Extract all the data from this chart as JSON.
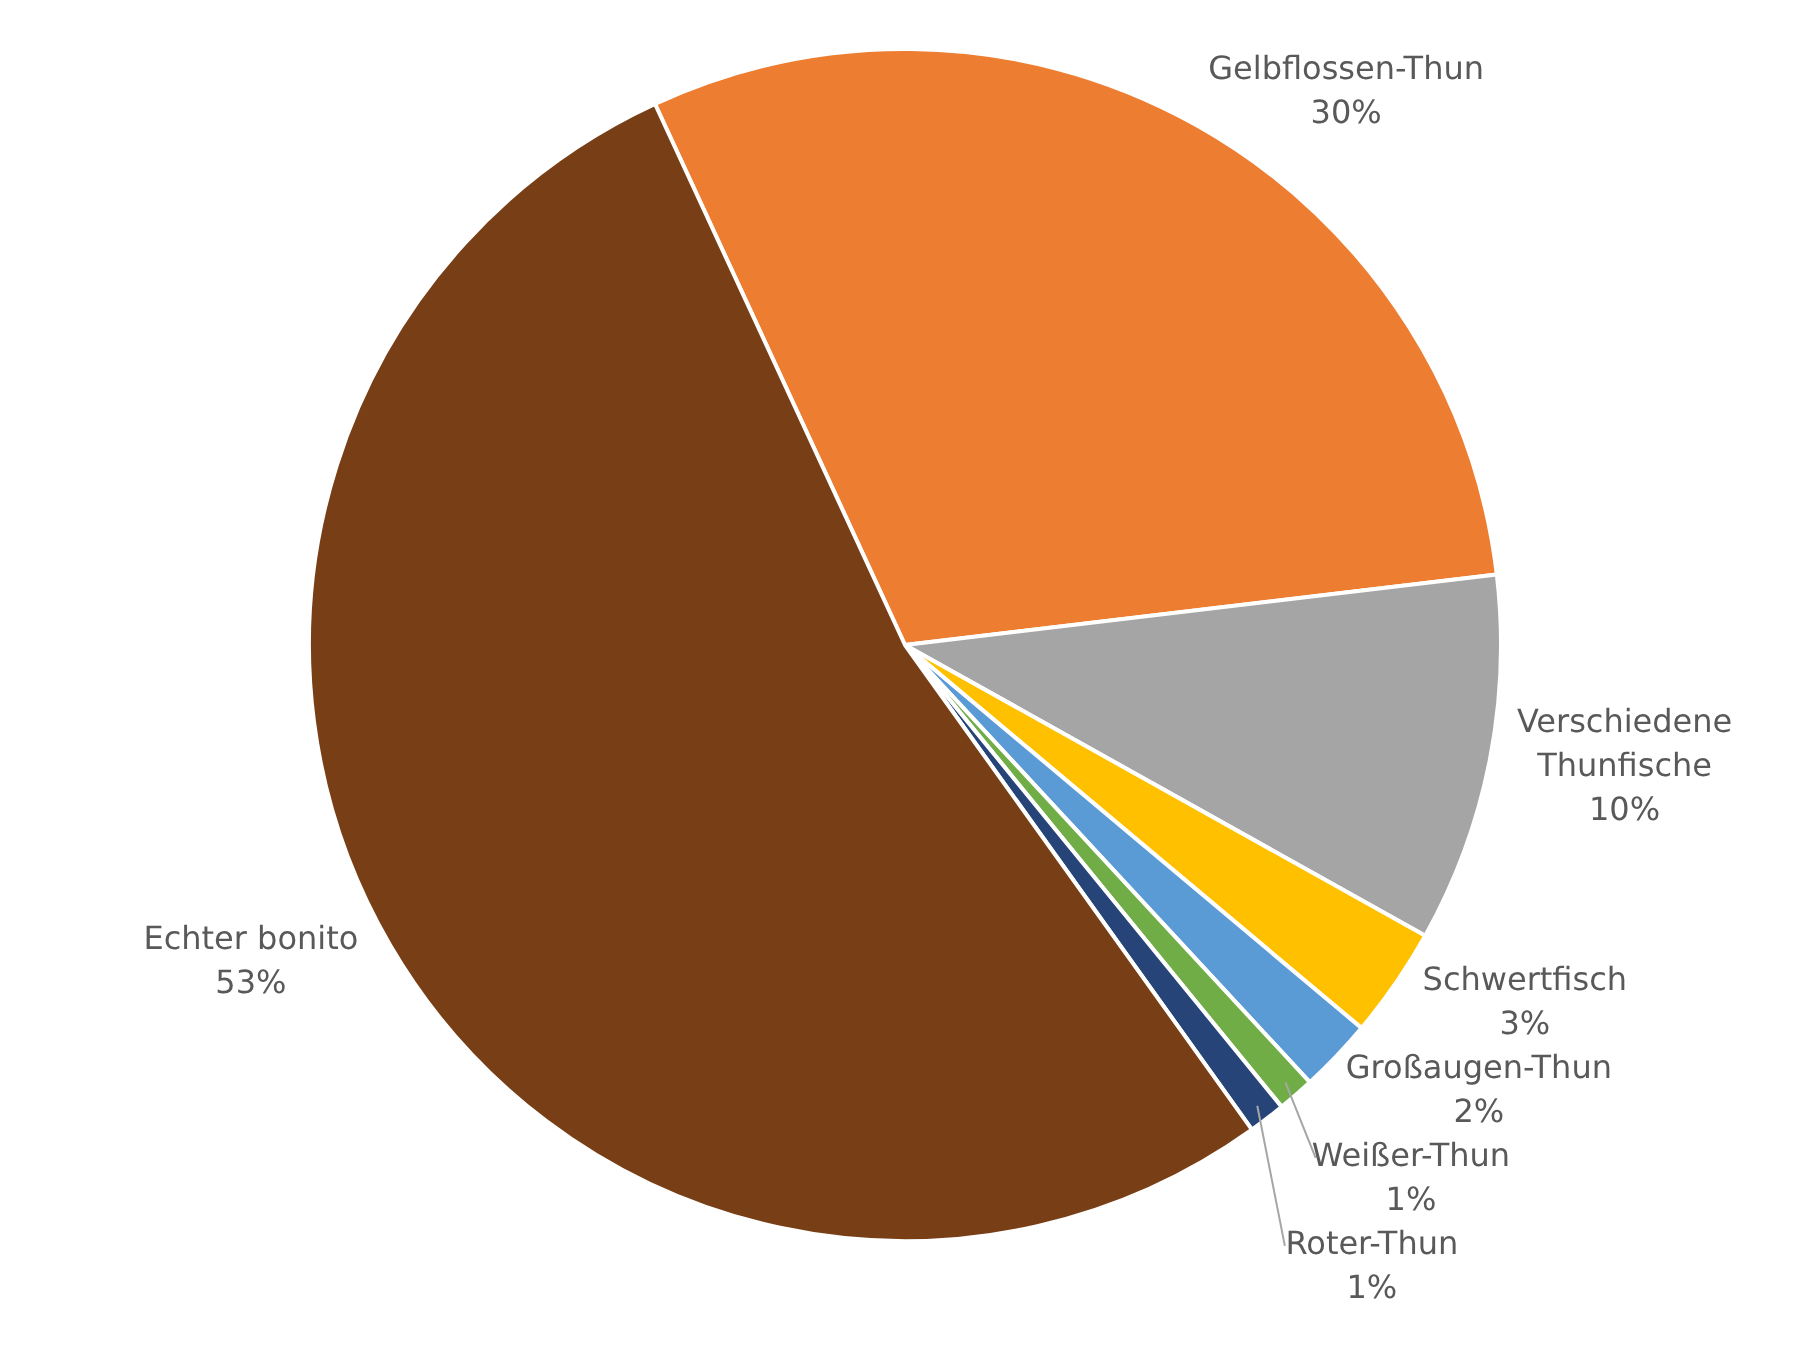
{
  "chart_data": {
    "type": "pie",
    "categories": [
      "Gelbflossen-Thun",
      "Verschiedene Thunfische",
      "Schwertfisch",
      "Großaugen-Thun",
      "Weißer-Thun",
      "Roter-Thun",
      "Echter bonito"
    ],
    "values": [
      30,
      10,
      3,
      2,
      1,
      1,
      53
    ],
    "value_labels": [
      "30%",
      "10%",
      "3%",
      "2%",
      "1%",
      "1%",
      "53%"
    ],
    "colors": [
      "#ed7d31",
      "#a5a5a5",
      "#ffc000",
      "#5b9bd5",
      "#70ad47",
      "#264478",
      "#783f17"
    ]
  }
}
